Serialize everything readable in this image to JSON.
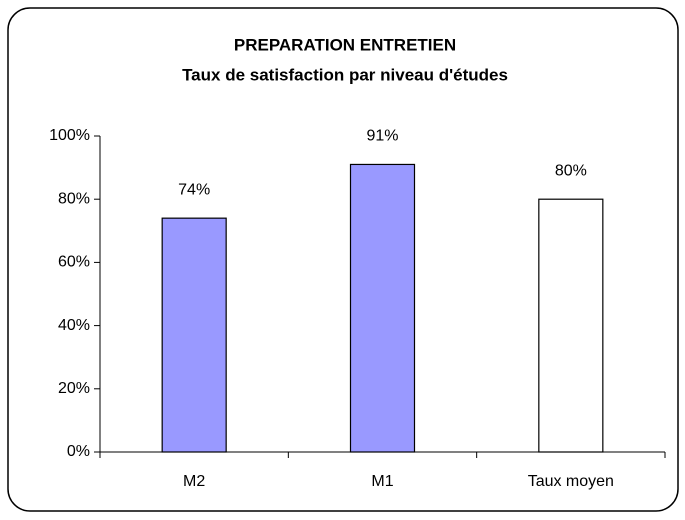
{
  "chart_data": {
    "type": "bar",
    "title": "PREPARATION ENTRETIEN",
    "subtitle": "Taux de satisfaction par niveau d'études",
    "categories": [
      "M2",
      "M1",
      "Taux moyen"
    ],
    "values": [
      74,
      91,
      80
    ],
    "value_labels": [
      "74%",
      "91%",
      "80%"
    ],
    "colors": [
      "#9999ff",
      "#9999ff",
      "#ffffff"
    ],
    "ylim": [
      0,
      100
    ],
    "yticks": [
      {
        "value": 0,
        "label": "0%"
      },
      {
        "value": 20,
        "label": "20%"
      },
      {
        "value": 40,
        "label": "40%"
      },
      {
        "value": 60,
        "label": "60%"
      },
      {
        "value": 80,
        "label": "80%"
      },
      {
        "value": 100,
        "label": "100%"
      }
    ],
    "grid": false
  }
}
